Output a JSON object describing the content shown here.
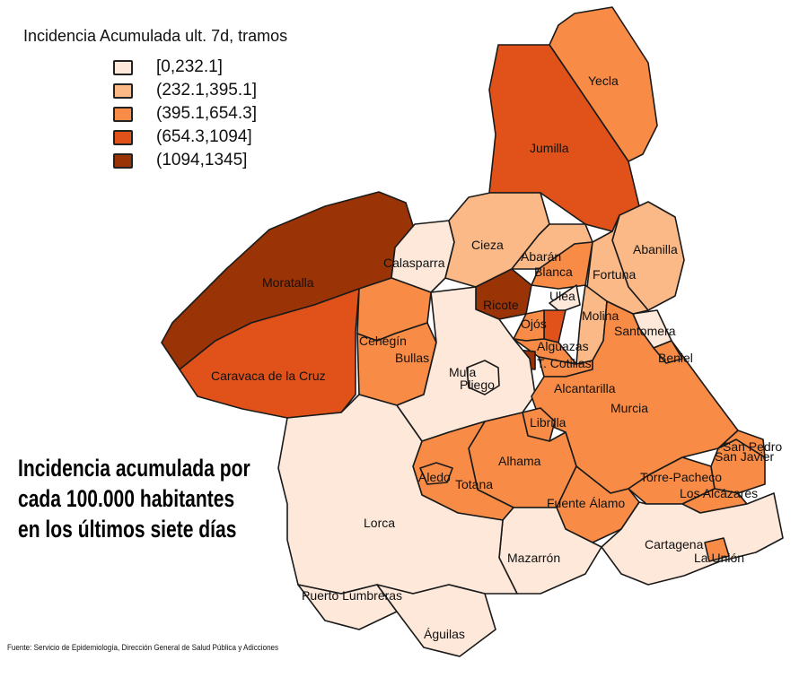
{
  "legend": {
    "title": "Incidencia Acumulada ult. 7d, tramos",
    "classes": [
      {
        "label": "[0,232.1]",
        "color": "#fde8da"
      },
      {
        "label": "(232.1,395.1]",
        "color": "#fbb987"
      },
      {
        "label": "(395.1,654.3]",
        "color": "#f88b45"
      },
      {
        "label": "(654.3,1094]",
        "color": "#e0521a"
      },
      {
        "label": "(1094,1345]",
        "color": "#9a3306"
      }
    ]
  },
  "municipalities": [
    {
      "id": "yecla",
      "label": "Yecla",
      "class": 3
    },
    {
      "id": "jumilla",
      "label": "Jumilla",
      "class": 4
    },
    {
      "id": "moratalla",
      "label": "Moratalla",
      "class": 5
    },
    {
      "id": "caravaca",
      "label": "Caravaca de la Cruz",
      "class": 4
    },
    {
      "id": "calasparra",
      "label": "Calasparra",
      "class": 1
    },
    {
      "id": "cehegin",
      "label": "Cehegín",
      "class": 3
    },
    {
      "id": "bullas",
      "label": "Bullas",
      "class": 3
    },
    {
      "id": "cieza",
      "label": "Cieza",
      "class": 2
    },
    {
      "id": "abaran",
      "label": "Abarán",
      "class": 2
    },
    {
      "id": "blanca",
      "label": "Blanca",
      "class": 3
    },
    {
      "id": "abanilla",
      "label": "Abanilla",
      "class": 2
    },
    {
      "id": "fortuna",
      "label": "Fortuna",
      "class": 2
    },
    {
      "id": "santomera",
      "label": "Santomera",
      "class": 1
    },
    {
      "id": "ricote",
      "label": "Ricote",
      "class": 5
    },
    {
      "id": "ulea",
      "label": "Ulea",
      "class": 1
    },
    {
      "id": "molina",
      "label": "Molina",
      "class": 2
    },
    {
      "id": "villanueva",
      "label": "",
      "class": 4
    },
    {
      "id": "ojos",
      "label": "Ojós",
      "class": 3
    },
    {
      "id": "alguazas",
      "label": "Alguazas",
      "class": 3
    },
    {
      "id": "campos",
      "label": "",
      "class": 5
    },
    {
      "id": "cotillas",
      "label": "T. Cotillas",
      "class": 3
    },
    {
      "id": "mula",
      "label": "Mula",
      "class": 1
    },
    {
      "id": "pliego",
      "label": "Pliego",
      "class": 1
    },
    {
      "id": "alcantarilla",
      "label": "Alcantarilla",
      "class": 3
    },
    {
      "id": "murcia",
      "label": "Murcia",
      "class": 3
    },
    {
      "id": "beniel",
      "label": "Beniel",
      "class": 3
    },
    {
      "id": "librilla",
      "label": "Librilla",
      "class": 3
    },
    {
      "id": "alhama",
      "label": "Alhama",
      "class": 3
    },
    {
      "id": "totana",
      "label": "Totana",
      "class": 3
    },
    {
      "id": "aledo",
      "label": "Aledo",
      "class": 3
    },
    {
      "id": "fuente_alamo",
      "label": "Fuente Álamo",
      "class": 3
    },
    {
      "id": "torre_pacheco",
      "label": "Torre-Pacheco",
      "class": 3
    },
    {
      "id": "san_javier",
      "label": "San Javier",
      "class": 3
    },
    {
      "id": "san_pedro",
      "label": "San Pedro",
      "class": 3
    },
    {
      "id": "los_alcazares",
      "label": "Los Alcázares",
      "class": 3
    },
    {
      "id": "cartagena",
      "label": "Cartagena",
      "class": 1
    },
    {
      "id": "la_union",
      "label": "La Unión",
      "class": 3
    },
    {
      "id": "mazarron",
      "label": "Mazarrón",
      "class": 1
    },
    {
      "id": "lorca",
      "label": "Lorca",
      "class": 1
    },
    {
      "id": "puerto_lumbreras",
      "label": "Puerto Lumbreras",
      "class": 1
    },
    {
      "id": "aguilas",
      "label": "Águilas",
      "class": 1
    }
  ],
  "annotation": {
    "line1": "Incidencia acumulada por",
    "line2": "cada 100.000 habitantes",
    "line3": "en los últimos siete días"
  },
  "source": "Fuente: Servicio de Epidemiología, Dirección General de Salud Pública y Adicciones"
}
